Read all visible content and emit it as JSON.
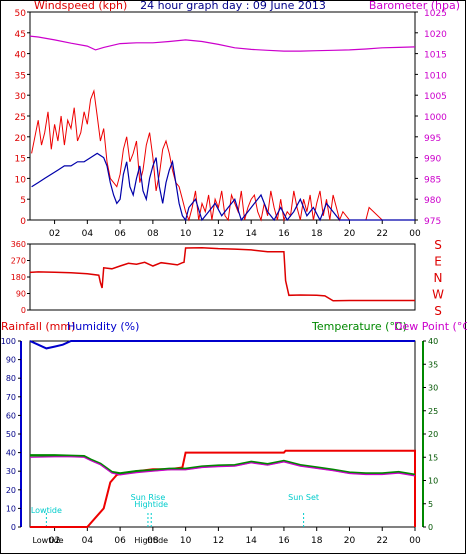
{
  "page_title": "24 hour graph day : 09 June 2013",
  "colors": {
    "wind_gust": "#ee0000",
    "wind_avg": "#0000aa",
    "barometer": "#cc00cc",
    "direction": "#dd0000",
    "rain": "#ee0000",
    "humidity": "#0000cc",
    "temperature": "#008800",
    "dewpoint": "#cc00cc",
    "frame": "#000000",
    "events": "#00cccc",
    "axis_left_wind": "#dd0000",
    "axis_right_baro": "#cc00cc"
  },
  "chart_data": [
    {
      "type": "line",
      "title": "24 hour graph day : 09 June 2013",
      "ylabel_left": "Windspeed (kph)",
      "ylabel_right": "Barometer (hpa)",
      "ylim_left": [
        0,
        50
      ],
      "yticks_left": [
        "0",
        "5",
        "10",
        "15",
        "20",
        "25",
        "30",
        "35",
        "40",
        "45",
        "50"
      ],
      "ylim_right": [
        975,
        1025
      ],
      "yticks_right": [
        "975",
        "980",
        "985",
        "990",
        "995",
        "1000",
        "1005",
        "1010",
        "1015",
        "1020",
        "1025"
      ],
      "xticks": [
        "02",
        "04",
        "06",
        "08",
        "10",
        "12",
        "14",
        "16",
        "18",
        "20",
        "22",
        "00"
      ],
      "xlim_hours": [
        0.5,
        24
      ],
      "series": [
        {
          "name": "gust",
          "axis": "left",
          "x": [
            0.6,
            0.8,
            1.0,
            1.2,
            1.4,
            1.6,
            1.8,
            2.0,
            2.2,
            2.4,
            2.6,
            2.8,
            3.0,
            3.2,
            3.4,
            3.6,
            3.8,
            4.0,
            4.2,
            4.4,
            4.6,
            4.8,
            5.0,
            5.2,
            5.4,
            5.6,
            5.8,
            6.0,
            6.2,
            6.4,
            6.6,
            6.8,
            7.0,
            7.2,
            7.4,
            7.6,
            7.8,
            8.0,
            8.2,
            8.4,
            8.6,
            8.8,
            9.0,
            9.2,
            9.4,
            9.6,
            9.8,
            10.0,
            10.2,
            10.4,
            10.6,
            10.8,
            11.0,
            11.2,
            11.4,
            11.6,
            11.8,
            12.0,
            12.2,
            12.4,
            12.6,
            12.8,
            13.0,
            13.2,
            13.4,
            13.6,
            13.8,
            14.0,
            14.2,
            14.4,
            14.6,
            14.8,
            15.0,
            15.2,
            15.4,
            15.6,
            15.8,
            16.0,
            16.2,
            16.4,
            16.6,
            16.8,
            17.0,
            17.2,
            17.4,
            17.6,
            17.8,
            18.0,
            18.2,
            18.4,
            18.6,
            18.8,
            19.0,
            19.2,
            19.4,
            19.6,
            20.0,
            20.4,
            20.8,
            21.0,
            21.2,
            22.0,
            23.0,
            24.0
          ],
          "values": [
            16,
            20,
            24,
            18,
            21,
            26,
            17,
            23,
            19,
            25,
            18,
            24,
            22,
            27,
            19,
            21,
            26,
            23,
            29,
            31,
            25,
            19,
            22,
            14,
            10,
            9,
            8,
            11,
            17,
            20,
            14,
            16,
            19,
            9,
            12,
            18,
            21,
            15,
            7,
            11,
            17,
            19,
            16,
            12,
            9,
            8,
            5,
            2,
            0,
            3,
            7,
            0,
            4,
            2,
            6,
            0,
            5,
            3,
            7,
            1,
            0,
            6,
            4,
            2,
            7,
            0,
            3,
            5,
            6,
            2,
            0,
            4,
            1,
            7,
            3,
            0,
            5,
            0,
            2,
            1,
            7,
            3,
            0,
            5,
            2,
            6,
            0,
            4,
            7,
            1,
            5,
            0,
            6,
            3,
            0,
            2,
            0,
            0,
            0,
            0,
            3,
            0,
            0,
            0
          ]
        },
        {
          "name": "average",
          "axis": "left",
          "x": [
            0.6,
            1.0,
            1.4,
            1.8,
            2.2,
            2.6,
            3.0,
            3.4,
            3.8,
            4.2,
            4.6,
            5.0,
            5.2,
            5.4,
            5.6,
            5.8,
            6.0,
            6.2,
            6.4,
            6.6,
            6.8,
            7.0,
            7.2,
            7.4,
            7.6,
            7.8,
            8.0,
            8.2,
            8.4,
            8.6,
            8.8,
            9.0,
            9.2,
            9.4,
            9.6,
            9.8,
            10.0,
            10.2,
            10.6,
            11.0,
            11.4,
            11.8,
            12.2,
            12.6,
            13.0,
            13.4,
            13.8,
            14.2,
            14.6,
            15.0,
            15.4,
            15.8,
            16.2,
            16.6,
            17.0,
            17.4,
            17.8,
            18.2,
            18.6,
            19.0,
            19.4,
            20.0,
            21.0,
            22.0,
            23.0,
            24.0
          ],
          "values": [
            8,
            9,
            10,
            11,
            12,
            13,
            13,
            14,
            14,
            15,
            16,
            15,
            13,
            9,
            6,
            4,
            5,
            11,
            14,
            8,
            6,
            10,
            13,
            7,
            5,
            10,
            13,
            15,
            8,
            4,
            9,
            12,
            14,
            9,
            4,
            1,
            0,
            3,
            5,
            0,
            2,
            4,
            1,
            3,
            5,
            0,
            2,
            4,
            6,
            2,
            0,
            3,
            0,
            2,
            5,
            1,
            3,
            0,
            4,
            2,
            0,
            0,
            0,
            0,
            0,
            0
          ]
        },
        {
          "name": "barometer",
          "axis": "right",
          "x": [
            0.5,
            1.0,
            2.0,
            3.0,
            4.0,
            4.5,
            5.0,
            6.0,
            7.0,
            8.0,
            9.0,
            10.0,
            11.0,
            12.0,
            13.0,
            14.0,
            15.0,
            16.0,
            17.0,
            18.0,
            19.0,
            20.0,
            21.0,
            22.0,
            23.0,
            24.0
          ],
          "values": [
            1019.2,
            1019.0,
            1018.3,
            1017.5,
            1016.8,
            1015.9,
            1016.5,
            1017.4,
            1017.6,
            1017.6,
            1017.9,
            1018.3,
            1017.9,
            1017.2,
            1016.4,
            1016.0,
            1015.8,
            1015.6,
            1015.6,
            1015.7,
            1015.8,
            1015.9,
            1016.1,
            1016.4,
            1016.5,
            1016.6
          ]
        }
      ]
    },
    {
      "type": "line",
      "yticks_left": [
        "0",
        "90",
        "180",
        "270",
        "360"
      ],
      "ylim": [
        0,
        360
      ],
      "compass_labels": [
        "S",
        "E",
        "N",
        "W",
        "S"
      ],
      "series": [
        {
          "name": "wind direction",
          "x": [
            0.5,
            1.0,
            2.0,
            3.0,
            4.0,
            4.7,
            4.8,
            4.9,
            5.0,
            5.5,
            6.0,
            6.5,
            7.0,
            7.5,
            8.0,
            8.5,
            9.0,
            9.5,
            9.8,
            9.9,
            10.0,
            11.0,
            12.0,
            13.0,
            14.0,
            15.0,
            16.0,
            16.1,
            16.3,
            17.0,
            18.0,
            18.5,
            19.0,
            20.0,
            22.0,
            24.0
          ],
          "values": [
            205,
            208,
            206,
            203,
            198,
            190,
            150,
            120,
            230,
            225,
            240,
            255,
            250,
            260,
            240,
            258,
            252,
            246,
            258,
            260,
            338,
            340,
            335,
            332,
            328,
            318,
            318,
            160,
            80,
            82,
            80,
            77,
            50,
            52,
            52,
            52
          ]
        }
      ]
    },
    {
      "type": "line",
      "ylabel_left": "Rainfall (mm)",
      "ylabel_left2": "Humidity (%)",
      "ylabel_right": "Temperature (°C)",
      "ylabel_right2": "Dew Point (°C)",
      "yticks_left": [
        "0",
        "10",
        "20",
        "30",
        "40",
        "50",
        "60",
        "70",
        "80",
        "90",
        "100"
      ],
      "ylim_left": [
        0,
        100
      ],
      "yticks_right": [
        "0",
        "5",
        "10",
        "15",
        "20",
        "25",
        "30",
        "35",
        "40"
      ],
      "ylim_right": [
        0,
        40
      ],
      "series": [
        {
          "name": "rainfall",
          "axis": "left",
          "x": [
            0.5,
            2.0,
            4.0,
            4.5,
            5.0,
            5.4,
            5.8,
            6.2,
            7.0,
            8.0,
            9.0,
            9.8,
            10.0,
            16.0,
            16.1,
            24.0,
            24.0
          ],
          "values": [
            0,
            0,
            0,
            5,
            10,
            24,
            28,
            29,
            30,
            31,
            31,
            32,
            40,
            40,
            41,
            41,
            0
          ]
        },
        {
          "name": "humidity",
          "axis": "left",
          "x": [
            0.5,
            1.0,
            1.5,
            2.0,
            2.5,
            3.0,
            3.5,
            24.0
          ],
          "values": [
            100,
            98,
            96,
            97,
            98,
            100,
            100,
            100
          ]
        },
        {
          "name": "temperature",
          "axis": "right",
          "x": [
            0.5,
            2.0,
            3.0,
            3.8,
            4.2,
            4.8,
            5.5,
            6.0,
            7.0,
            8.0,
            9.0,
            10.0,
            11.0,
            12.0,
            13.0,
            14.0,
            15.0,
            16.0,
            17.0,
            18.0,
            19.0,
            20.0,
            21.0,
            22.0,
            23.0,
            24.0
          ],
          "values": [
            15.4,
            15.4,
            15.3,
            15.2,
            14.5,
            13.6,
            11.8,
            11.5,
            12.0,
            12.2,
            12.5,
            12.5,
            13.0,
            13.2,
            13.3,
            14.0,
            13.5,
            14.2,
            13.3,
            12.8,
            12.3,
            11.7,
            11.5,
            11.5,
            11.8,
            11.2
          ]
        },
        {
          "name": "dew point",
          "axis": "right",
          "x": [
            0.5,
            2.0,
            3.0,
            3.8,
            4.2,
            4.8,
            5.5,
            6.0,
            7.0,
            8.0,
            9.0,
            10.0,
            11.0,
            12.0,
            13.0,
            14.0,
            15.0,
            16.0,
            17.0,
            18.0,
            19.0,
            20.0,
            21.0,
            22.0,
            23.0,
            24.0
          ],
          "values": [
            15.0,
            15.1,
            15.1,
            15.0,
            14.3,
            13.4,
            11.6,
            11.2,
            11.7,
            12.0,
            12.3,
            12.3,
            12.8,
            13.0,
            13.1,
            13.8,
            13.3,
            14.0,
            13.1,
            12.6,
            12.1,
            11.5,
            11.3,
            11.3,
            11.6,
            11.0
          ]
        }
      ],
      "events": [
        {
          "label": "Lowtide",
          "hour": 1.5
        },
        {
          "label": "Sun Rise",
          "hour": 7.7
        },
        {
          "label": "Hightide",
          "hour": 7.9
        },
        {
          "label": "Sun Set",
          "hour": 17.2
        }
      ],
      "bottom_labels": [
        "Lowtide",
        "Hightide"
      ]
    }
  ]
}
